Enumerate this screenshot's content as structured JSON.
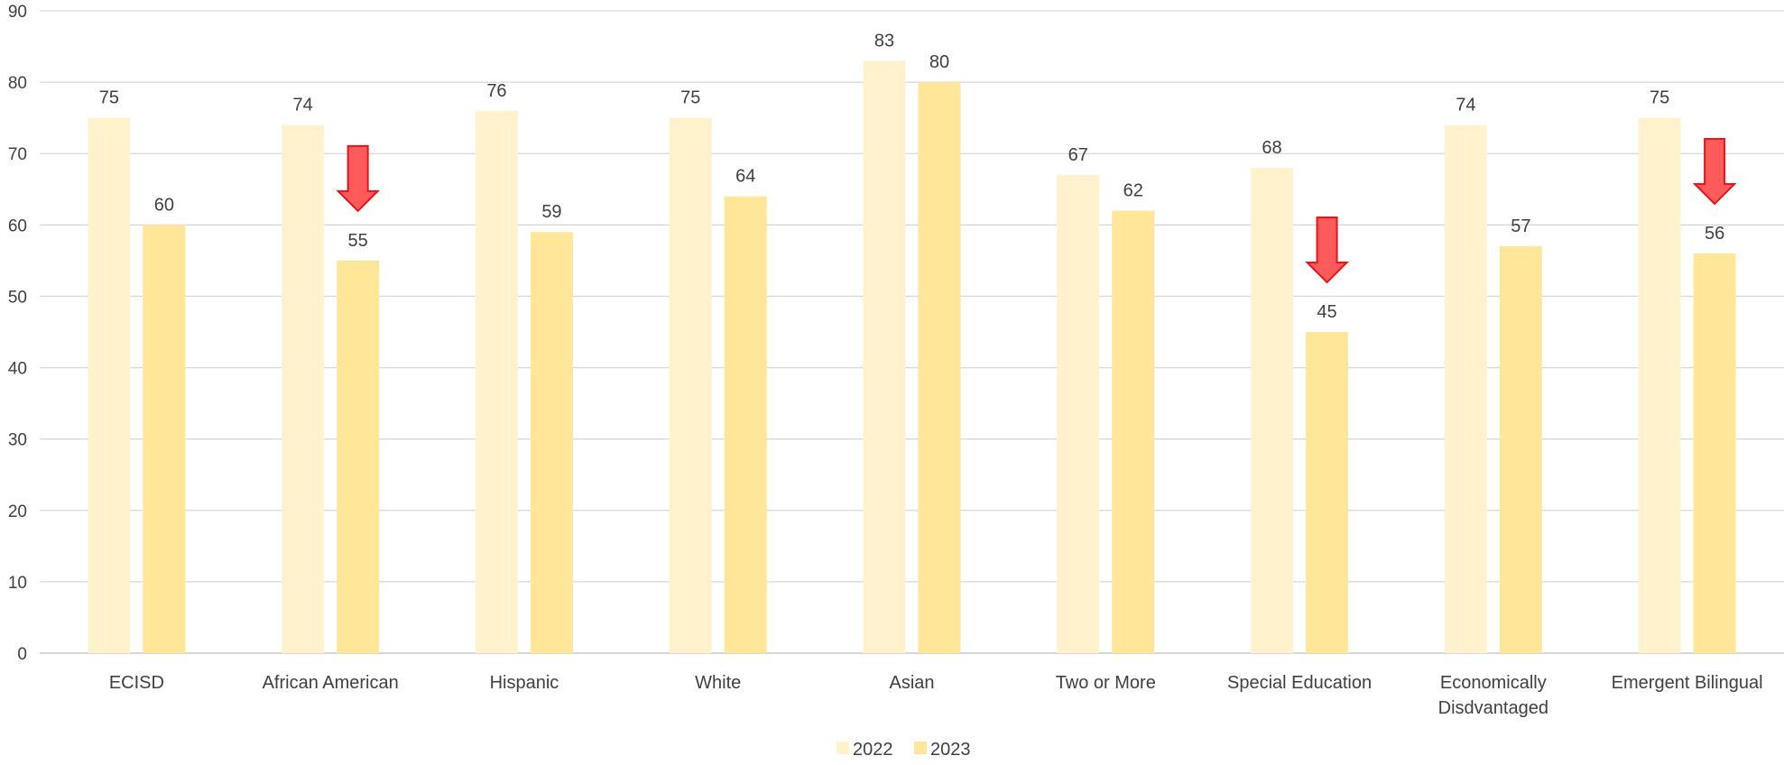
{
  "chart_data": {
    "type": "bar",
    "title": "",
    "xlabel": "",
    "ylabel": "",
    "ylim": [
      0,
      90
    ],
    "yticks": [
      0,
      10,
      20,
      30,
      40,
      50,
      60,
      70,
      80,
      90
    ],
    "grid": true,
    "legend_position": "bottom-center",
    "categories": [
      [
        "ECISD"
      ],
      [
        "African American"
      ],
      [
        "Hispanic"
      ],
      [
        "White"
      ],
      [
        "Asian"
      ],
      [
        "Two or More"
      ],
      [
        "Special Education"
      ],
      [
        "Economically",
        "Disdvantaged"
      ],
      [
        "Emergent Bilingual"
      ]
    ],
    "series": [
      {
        "name": "2022",
        "color": "#FFF2CC",
        "values": [
          75,
          74,
          76,
          75,
          83,
          67,
          68,
          74,
          75
        ]
      },
      {
        "name": "2023",
        "color": "#FFE699",
        "values": [
          60,
          55,
          59,
          64,
          80,
          62,
          45,
          57,
          56
        ]
      }
    ],
    "annotations": {
      "type": "down-arrow",
      "color": "#FF5B5B",
      "stroke": "#E8141A",
      "categories": [
        "African American",
        "Special Education",
        "Emergent Bilingual"
      ]
    }
  }
}
